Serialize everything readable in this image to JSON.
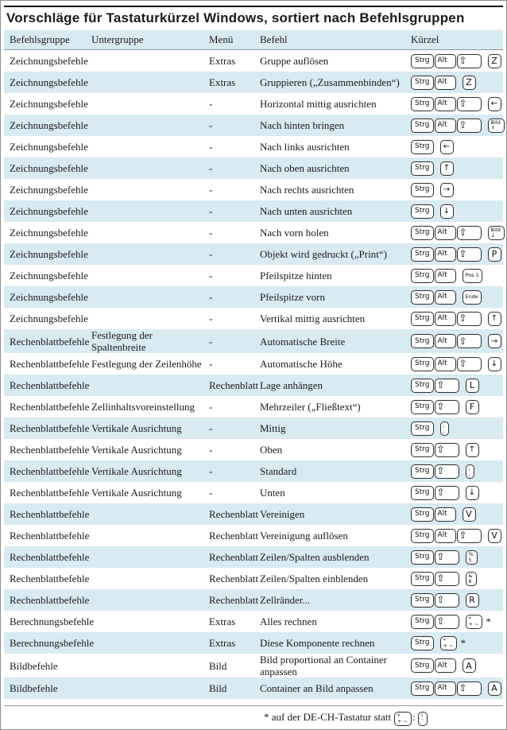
{
  "title": "Vorschläge für Tastaturkürzel Windows, sortiert nach Befehlsgruppen",
  "columns": [
    "Befehlsgruppe",
    "Untergruppe",
    "Menü",
    "Befehl",
    "Kürzel"
  ],
  "colors": {
    "stripe": "#d8eaf2",
    "rule": "#8f989c",
    "key_border": "#2e2e2e"
  },
  "key_glyphs": {
    "Strg": "Strg",
    "Alt": "Alt",
    "Shift": "⇧"
  },
  "rows": [
    {
      "befehlsgruppe": "Zeichnungsbefehle",
      "untergruppe": "",
      "menue": "Extras",
      "befehl": "Gruppe auflösen",
      "mods": [
        "Strg",
        "Alt",
        "Shift"
      ],
      "key": {
        "type": "letter",
        "label": "Z"
      },
      "star": false
    },
    {
      "befehlsgruppe": "Zeichnungsbefehle",
      "untergruppe": "",
      "menue": "Extras",
      "befehl": "Gruppieren („Zusammenbinden“)",
      "mods": [
        "Strg",
        "Alt"
      ],
      "key": {
        "type": "letter",
        "label": "Z"
      },
      "star": false
    },
    {
      "befehlsgruppe": "Zeichnungsbefehle",
      "untergruppe": "",
      "menue": "-",
      "befehl": "Horizontal mittig ausrichten",
      "mods": [
        "Strg",
        "Alt",
        "Shift"
      ],
      "key": {
        "type": "arrow",
        "label": "←"
      },
      "star": false
    },
    {
      "befehlsgruppe": "Zeichnungsbefehle",
      "untergruppe": "",
      "menue": "-",
      "befehl": "Nach hinten bringen",
      "mods": [
        "Strg",
        "Alt",
        "Shift"
      ],
      "key": {
        "type": "stack",
        "top": "Bild",
        "bottom": "↑"
      },
      "star": false
    },
    {
      "befehlsgruppe": "Zeichnungsbefehle",
      "untergruppe": "",
      "menue": "-",
      "befehl": "Nach links ausrichten",
      "mods": [
        "Strg"
      ],
      "key": {
        "type": "arrow",
        "label": "←"
      },
      "star": false
    },
    {
      "befehlsgruppe": "Zeichnungsbefehle",
      "untergruppe": "",
      "menue": "-",
      "befehl": "Nach oben ausrichten",
      "mods": [
        "Strg"
      ],
      "key": {
        "type": "arrow",
        "label": "↑"
      },
      "star": false
    },
    {
      "befehlsgruppe": "Zeichnungsbefehle",
      "untergruppe": "",
      "menue": "-",
      "befehl": "Nach rechts ausrichten",
      "mods": [
        "Strg"
      ],
      "key": {
        "type": "arrow",
        "label": "→"
      },
      "star": false
    },
    {
      "befehlsgruppe": "Zeichnungsbefehle",
      "untergruppe": "",
      "menue": "-",
      "befehl": "Nach unten ausrichten",
      "mods": [
        "Strg"
      ],
      "key": {
        "type": "arrow",
        "label": "↓"
      },
      "star": false
    },
    {
      "befehlsgruppe": "Zeichnungsbefehle",
      "untergruppe": "",
      "menue": "-",
      "befehl": "Nach vorn holen",
      "mods": [
        "Strg",
        "Alt",
        "Shift"
      ],
      "key": {
        "type": "stack",
        "top": "Bild",
        "bottom": "↓"
      },
      "star": false
    },
    {
      "befehlsgruppe": "Zeichnungsbefehle",
      "untergruppe": "",
      "menue": "-",
      "befehl": "Objekt wird gedruckt („Print“)",
      "mods": [
        "Strg",
        "Alt",
        "Shift"
      ],
      "key": {
        "type": "letter",
        "label": "P"
      },
      "star": false
    },
    {
      "befehlsgruppe": "Zeichnungsbefehle",
      "untergruppe": "",
      "menue": "-",
      "befehl": "Pfeilspitze hinten",
      "mods": [
        "Strg",
        "Alt"
      ],
      "key": {
        "type": "named",
        "label": "Pos 1"
      },
      "star": false
    },
    {
      "befehlsgruppe": "Zeichnungsbefehle",
      "untergruppe": "",
      "menue": "-",
      "befehl": "Pfeilspitze vorn",
      "mods": [
        "Strg",
        "Alt"
      ],
      "key": {
        "type": "named",
        "label": "Ende"
      },
      "star": false
    },
    {
      "befehlsgruppe": "Zeichnungsbefehle",
      "untergruppe": "",
      "menue": "-",
      "befehl": "Vertikal mittig ausrichten",
      "mods": [
        "Strg",
        "Alt",
        "Shift"
      ],
      "key": {
        "type": "arrow",
        "label": "↑"
      },
      "star": false
    },
    {
      "befehlsgruppe": "Rechenblattbefehle",
      "untergruppe": "Festlegung der Spaltenbreite",
      "menue": "-",
      "befehl": "Automatische Breite",
      "mods": [
        "Strg",
        "Alt",
        "Shift"
      ],
      "key": {
        "type": "arrow",
        "label": "→"
      },
      "star": false
    },
    {
      "befehlsgruppe": "Rechenblattbefehle",
      "untergruppe": "Festlegung der Zeilenhöhe",
      "menue": "-",
      "befehl": "Automatische Höhe",
      "mods": [
        "Strg",
        "Alt",
        "Shift"
      ],
      "key": {
        "type": "arrow",
        "label": "↓"
      },
      "star": false
    },
    {
      "befehlsgruppe": "Rechenblattbefehle",
      "untergruppe": "",
      "menue": "Rechenblatt",
      "befehl": "Lage anhängen",
      "mods": [
        "Strg",
        "Shift"
      ],
      "key": {
        "type": "letter",
        "label": "L"
      },
      "star": false
    },
    {
      "befehlsgruppe": "Rechenblattbefehle",
      "untergruppe": "Zellinhaltsvoreinstellung",
      "menue": "-",
      "befehl": "Mehrzeiler („Fließtext“)",
      "mods": [
        "Strg",
        "Shift"
      ],
      "key": {
        "type": "letter",
        "label": "F"
      },
      "star": false
    },
    {
      "befehlsgruppe": "Rechenblattbefehle",
      "untergruppe": "Vertikale Ausrichtung",
      "menue": "-",
      "befehl": "Mittig",
      "mods": [
        "Strg"
      ],
      "key": {
        "type": "stack",
        "top": ";",
        "bottom": ","
      },
      "star": false
    },
    {
      "befehlsgruppe": "Rechenblattbefehle",
      "untergruppe": "Vertikale Ausrichtung",
      "menue": "-",
      "befehl": "Oben",
      "mods": [
        "Strg",
        "Shift"
      ],
      "key": {
        "type": "arrow",
        "label": "↑"
      },
      "star": false
    },
    {
      "befehlsgruppe": "Rechenblattbefehle",
      "untergruppe": "Vertikale Ausrichtung",
      "menue": "-",
      "befehl": "Standard",
      "mods": [
        "Strg",
        "Shift"
      ],
      "key": {
        "type": "stack",
        "top": ";",
        "bottom": ","
      },
      "star": false
    },
    {
      "befehlsgruppe": "Rechenblattbefehle",
      "untergruppe": "Vertikale Ausrichtung",
      "menue": "-",
      "befehl": "Unten",
      "mods": [
        "Strg",
        "Shift"
      ],
      "key": {
        "type": "arrow",
        "label": "↓"
      },
      "star": false
    },
    {
      "befehlsgruppe": "Rechenblattbefehle",
      "untergruppe": "",
      "menue": "Rechenblatt",
      "befehl": "Vereinigen",
      "mods": [
        "Strg",
        "Alt"
      ],
      "key": {
        "type": "letter",
        "label": "V"
      },
      "star": false
    },
    {
      "befehlsgruppe": "Rechenblattbefehle",
      "untergruppe": "",
      "menue": "Rechenblatt",
      "befehl": "Vereinigung auflösen",
      "mods": [
        "Strg",
        "Alt",
        "Shift"
      ],
      "key": {
        "type": "letter",
        "label": "V"
      },
      "star": false
    },
    {
      "befehlsgruppe": "Rechenblattbefehle",
      "untergruppe": "",
      "menue": "Rechenblatt",
      "befehl": "Zeilen/Spalten ausblenden",
      "mods": [
        "Strg",
        "Shift"
      ],
      "key": {
        "type": "stack",
        "top": "%",
        "bottom": "5"
      },
      "star": false
    },
    {
      "befehlsgruppe": "Rechenblattbefehle",
      "untergruppe": "",
      "menue": "Rechenblatt",
      "befehl": "Zeilen/Spalten einblenden",
      "mods": [
        "Strg",
        "Shift"
      ],
      "key": {
        "type": "stack",
        "top": "&",
        "bottom": "6"
      },
      "star": false
    },
    {
      "befehlsgruppe": "Rechenblattbefehle",
      "untergruppe": "",
      "menue": "Rechenblatt",
      "befehl": "Zellränder...",
      "mods": [
        "Strg",
        "Shift"
      ],
      "key": {
        "type": "letter",
        "label": "R"
      },
      "star": false
    },
    {
      "befehlsgruppe": "Berechnungsbefehle",
      "untergruppe": "",
      "menue": "Extras",
      "befehl": "Alles rechnen",
      "mods": [
        "Strg",
        "Shift"
      ],
      "key": {
        "type": "stack",
        "top": "*",
        "bottom": "+ ~"
      },
      "star": true
    },
    {
      "befehlsgruppe": "Berechnungsbefehle",
      "untergruppe": "",
      "menue": "Extras",
      "befehl": "Diese Komponente rechnen",
      "mods": [
        "Strg"
      ],
      "key": {
        "type": "stack",
        "top": "*",
        "bottom": "+ ~"
      },
      "star": true
    },
    {
      "befehlsgruppe": "Bildbefehle",
      "untergruppe": "",
      "menue": "Bild",
      "befehl": "Bild proportional an Container anpassen",
      "mods": [
        "Strg",
        "Alt"
      ],
      "key": {
        "type": "letter",
        "label": "A"
      },
      "star": false
    },
    {
      "befehlsgruppe": "Bildbefehle",
      "untergruppe": "",
      "menue": "Bild",
      "befehl": "Container an Bild anpassen",
      "mods": [
        "Strg",
        "Alt",
        "Shift"
      ],
      "key": {
        "type": "letter",
        "label": "A"
      },
      "star": false
    }
  ],
  "footnote": {
    "text": "* auf der DE-CH-Tastatur statt",
    "key1": {
      "type": "stack",
      "top": "*",
      "bottom": "+ ~"
    },
    "sep": ":",
    "key2": {
      "type": "stack",
      "top": "!",
      "bottom": "¨"
    }
  }
}
